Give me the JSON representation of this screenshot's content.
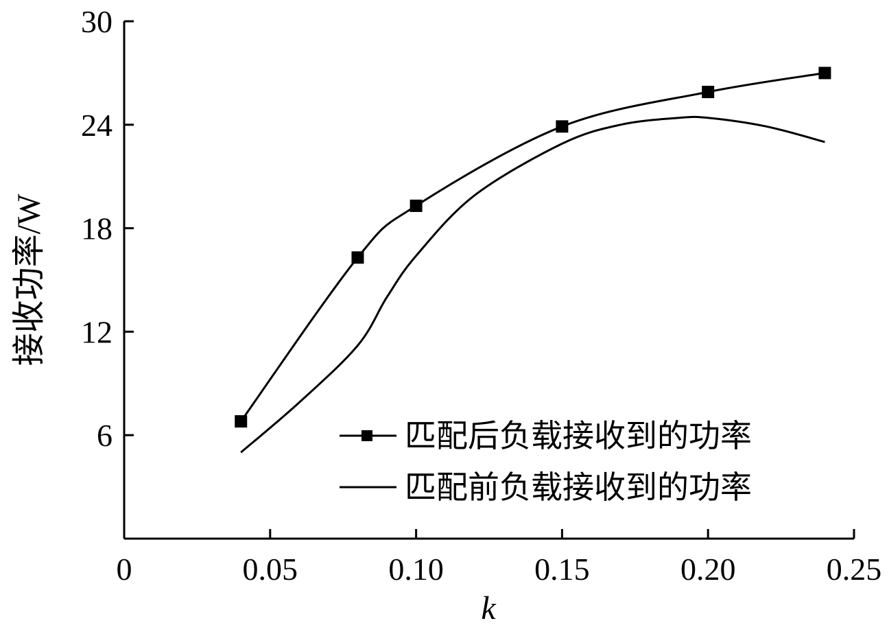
{
  "chart_data": {
    "type": "line",
    "xlabel": "k",
    "ylabel": "接收功率/W",
    "xlim": [
      0,
      0.25
    ],
    "ylim": [
      0,
      30
    ],
    "x_ticks": [
      {
        "value": 0,
        "label": "0"
      },
      {
        "value": 0.05,
        "label": "0.05"
      },
      {
        "value": 0.1,
        "label": "0.10"
      },
      {
        "value": 0.15,
        "label": "0.15"
      },
      {
        "value": 0.2,
        "label": "0.20"
      },
      {
        "value": 0.25,
        "label": "0.25"
      }
    ],
    "y_ticks": [
      {
        "value": 6,
        "label": "6"
      },
      {
        "value": 12,
        "label": "12"
      },
      {
        "value": 18,
        "label": "18"
      },
      {
        "value": 24,
        "label": "24"
      },
      {
        "value": 30,
        "label": "30"
      }
    ],
    "grid": false,
    "legend_position": "bottom-right",
    "series": [
      {
        "name": "匹配后负载接收到的功率",
        "marker": "square",
        "color": "#000000",
        "points": [
          [
            0.04,
            6.8
          ],
          [
            0.08,
            16.3
          ],
          [
            0.1,
            19.3
          ],
          [
            0.15,
            23.9
          ],
          [
            0.2,
            25.9
          ],
          [
            0.24,
            27.0
          ]
        ]
      },
      {
        "name": "匹配前负载接收到的功率",
        "marker": "none",
        "color": "#000000",
        "points": [
          [
            0.04,
            5.0
          ],
          [
            0.06,
            7.9
          ],
          [
            0.08,
            11.2
          ],
          [
            0.09,
            14.0
          ],
          [
            0.1,
            16.4
          ],
          [
            0.12,
            19.9
          ],
          [
            0.15,
            22.9
          ],
          [
            0.17,
            24.0
          ],
          [
            0.19,
            24.4
          ],
          [
            0.2,
            24.4
          ],
          [
            0.22,
            23.9
          ],
          [
            0.24,
            23.0
          ]
        ]
      }
    ]
  }
}
